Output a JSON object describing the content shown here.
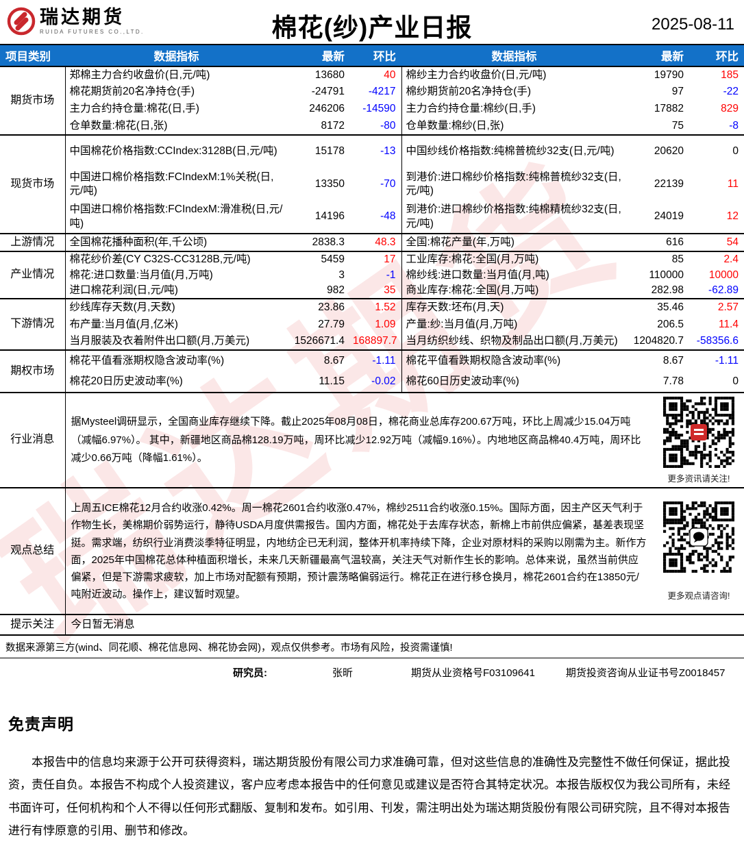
{
  "header": {
    "logo_text": "瑞达期货",
    "logo_subtext": "RUIDA FUTURES CO.,LTD.",
    "title": "棉花(纱)产业日报",
    "date": "2025-08-11"
  },
  "colors": {
    "up": "#ff0000",
    "down": "#0000ff",
    "flat": "#000000",
    "header_bg": "#1371c8",
    "logo_red": "#c9282d"
  },
  "table": {
    "columns": [
      "项目类别",
      "数据指标",
      "最新",
      "环比",
      "数据指标",
      "最新",
      "环比"
    ],
    "sections": [
      {
        "category": "期货市场",
        "rows": [
          {
            "left": {
              "name": "郑棉主力合约收盘价(日,元/吨)",
              "value": "13680",
              "change": "40",
              "dir": "up"
            },
            "right": {
              "name": "棉纱主力合约收盘价(日,元/吨)",
              "value": "19790",
              "change": "185",
              "dir": "up"
            }
          },
          {
            "left": {
              "name": "棉花期货前20名净持仓(手)",
              "value": "-24791",
              "change": "-4217",
              "dir": "down"
            },
            "right": {
              "name": "棉纱期货前20名净持仓(手)",
              "value": "97",
              "change": "-22",
              "dir": "down"
            }
          },
          {
            "left": {
              "name": "主力合约持仓量:棉花(日,手)",
              "value": "246206",
              "change": "-14590",
              "dir": "down"
            },
            "right": {
              "name": "主力合约持仓量:棉纱(日,手)",
              "value": "17882",
              "change": "829",
              "dir": "up"
            }
          },
          {
            "left": {
              "name": "仓单数量:棉花(日,张)",
              "value": "8172",
              "change": "-80",
              "dir": "down"
            },
            "right": {
              "name": "仓单数量:棉纱(日,张)",
              "value": "75",
              "change": "-8",
              "dir": "down"
            }
          }
        ]
      },
      {
        "category": "现货市场",
        "rows": [
          {
            "left": {
              "name": "中国棉花价格指数:CCIndex:3128B(日,元/吨)",
              "value": "15178",
              "change": "-13",
              "dir": "down"
            },
            "right": {
              "name": "中国纱线价格指数:纯棉普梳纱32支(日,元/吨)",
              "value": "20620",
              "change": "0",
              "dir": "flat"
            }
          },
          {
            "left": {
              "name": "中国进口棉价格指数:FCIndexM:1%关税(日,元/吨)",
              "value": "13350",
              "change": "-70",
              "dir": "down"
            },
            "right": {
              "name": "到港价:进口棉纱价格指数:纯棉普梳纱32支(日,元/吨)",
              "value": "22139",
              "change": "11",
              "dir": "up"
            }
          },
          {
            "left": {
              "name": "中国进口棉价格指数:FCIndexM:滑准税(日,元/吨)",
              "value": "14196",
              "change": "-48",
              "dir": "down"
            },
            "right": {
              "name": "到港价:进口棉纱价格指数:纯棉精梳纱32支(日,元/吨)",
              "value": "24019",
              "change": "12",
              "dir": "up"
            }
          }
        ]
      },
      {
        "category": "上游情况",
        "rows": [
          {
            "left": {
              "name": "全国棉花播种面积(年,千公顷)",
              "value": "2838.3",
              "change": "48.3",
              "dir": "up"
            },
            "right": {
              "name": "全国:棉花产量(年,万吨)",
              "value": "616",
              "change": "54",
              "dir": "up"
            }
          }
        ]
      },
      {
        "category": "产业情况",
        "rows": [
          {
            "left": {
              "name": "棉花纱价差(CY C32S-CC3128B,元/吨)",
              "value": "5459",
              "change": "17",
              "dir": "up"
            },
            "right": {
              "name": "工业库存:棉花:全国(月,万吨)",
              "value": "85",
              "change": "2.4",
              "dir": "up"
            }
          },
          {
            "left": {
              "name": "棉花:进口数量:当月值(月,万吨)",
              "value": "3",
              "change": "-1",
              "dir": "down"
            },
            "right": {
              "name": "棉纱线:进口数量:当月值(月,吨)",
              "value": "110000",
              "change": "10000",
              "dir": "up"
            }
          },
          {
            "left": {
              "name": "进口棉花利润(日,元/吨)",
              "value": "982",
              "change": "35",
              "dir": "up"
            },
            "right": {
              "name": "商业库存:棉花:全国(月,万吨)",
              "value": "282.98",
              "change": "-62.89",
              "dir": "down"
            }
          }
        ]
      },
      {
        "category": "下游情况",
        "rows": [
          {
            "left": {
              "name": "纱线库存天数(月,天数)",
              "value": "23.86",
              "change": "1.52",
              "dir": "up"
            },
            "right": {
              "name": "库存天数:坯布(月,天)",
              "value": "35.46",
              "change": "2.57",
              "dir": "up"
            }
          },
          {
            "left": {
              "name": "布产量:当月值(月,亿米)",
              "value": "27.79",
              "change": "1.09",
              "dir": "up"
            },
            "right": {
              "name": "产量:纱:当月值(月,万吨)",
              "value": "206.5",
              "change": "11.4",
              "dir": "up"
            }
          },
          {
            "left": {
              "name": "当月服装及衣着附件出口额(月,万美元)",
              "value": "1526671.4",
              "change": "168897.7",
              "dir": "up"
            },
            "right": {
              "name": "当月纺织纱线、织物及制品出口额(月,万美元)",
              "value": "1204820.7",
              "change": "-58356.6",
              "dir": "down"
            }
          }
        ]
      },
      {
        "category": "期权市场",
        "rows": [
          {
            "left": {
              "name": "棉花平值看涨期权隐含波动率(%)",
              "value": "8.67",
              "change": "-1.11",
              "dir": "down"
            },
            "right": {
              "name": "棉花平值看跌期权隐含波动率(%)",
              "value": "8.67",
              "change": "-1.11",
              "dir": "down"
            }
          },
          {
            "left": {
              "name": "棉花20日历史波动率(%)",
              "value": "11.15",
              "change": "-0.02",
              "dir": "down"
            },
            "right": {
              "name": "棉花60日历史波动率(%)",
              "value": "7.78",
              "change": "0",
              "dir": "flat"
            }
          }
        ]
      }
    ]
  },
  "news": {
    "category": "行业消息",
    "text": "据Mysteel调研显示，全国商业库存继续下降。截止2025年08月08日，棉花商业总库存200.67万吨，环比上周减少15.04万吨（减幅6.97%）。 其中，新疆地区商品棉128.19万吨，周环比减少12.92万吨（减幅9.16%）。内地地区商品棉40.4万吨，周环比减少0.66万吨（降幅1.61%）。",
    "qr_caption": "更多资讯请关注!"
  },
  "opinion": {
    "category": "观点总结",
    "text": "上周五ICE棉花12月合约收涨0.42%。周一棉花2601合约收涨0.47%，棉纱2511合约收涨0.15%。国际方面，因主产区天气利于作物生长，美棉期价弱势运行，静待USDA月度供需报告。国内方面，棉花处于去库存状态，新棉上市前供应偏紧，基差表现坚挺。需求端，纺织行业消费淡季特征明显，内地纺企已无利润，整体开机率持续下降，企业对原材料的采购以刚需为主。新作方面，2025年中国棉花总体种植面积增长，未来几天新疆最高气温较高，关注天气对新作生长的影响。总体来说，虽然当前供应偏紧，但是下游需求疲软，加上市场对配额有预期，预计震荡略偏弱运行。棉花正在进行移仓换月，棉花2601合约在13850元/吨附近波动。操作上，建议暂时观望。",
    "qr_caption": "更多观点请咨询!"
  },
  "notice": {
    "category": "提示关注",
    "text": "今日暂无消息"
  },
  "footer": {
    "source": "数据来源第三方(wind、同花顺、棉花信息网、棉花协会网)，观点仅供参考。市场有风险，投资需谨慎!",
    "researcher_label": "研究员:",
    "researcher_name": "张昕",
    "cert1": "期货从业资格号F03109641",
    "cert2": "期货投资咨询从业证书号Z0018457"
  },
  "disclaimer": {
    "title": "免责声明",
    "body": "本报告中的信息均来源于公开可获得资料，瑞达期货股份有限公司力求准确可靠，但对这些信息的准确性及完整性不做任何保证，据此投资，责任自负。本报告不构成个人投资建议，客户应考虑本报告中的任何意见或建议是否符合其特定状况。本报告版权仅为我公司所有，未经书面许可，任何机构和个人不得以任何形式翻版、复制和发布。如引用、刊发，需注明出处为瑞达期货股份有限公司研究院，且不得对本报告进行有悖原意的引用、删节和修改。"
  },
  "watermark": "瑞达期货"
}
